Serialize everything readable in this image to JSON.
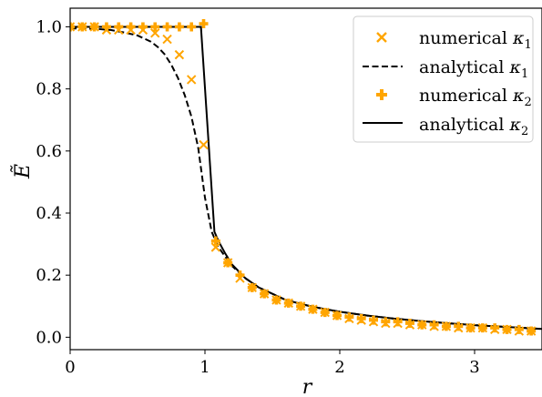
{
  "chart_data": {
    "type": "scatter",
    "xlabel": "r",
    "ylabel": "Ẽ",
    "xlim": [
      0,
      3.5
    ],
    "ylim": [
      -0.04,
      1.06
    ],
    "xticks": [
      0,
      1,
      2,
      3
    ],
    "xtick_labels": [
      "0",
      "1",
      "2",
      "3"
    ],
    "yticks": [
      0.0,
      0.2,
      0.4,
      0.6,
      0.8,
      1.0
    ],
    "ytick_labels": [
      "0.0",
      "0.2",
      "0.4",
      "0.6",
      "0.8",
      "1.0"
    ],
    "grid": false,
    "legend_position": "top-right",
    "colors": {
      "numerical": "#ffa500",
      "analytical": "#000000"
    },
    "series": [
      {
        "name": "numerical κ1",
        "marker": "x",
        "style": "marker",
        "x": [
          0.0,
          0.09,
          0.18,
          0.27,
          0.36,
          0.45,
          0.54,
          0.63,
          0.72,
          0.81,
          0.9,
          0.99,
          1.08,
          1.17,
          1.26,
          1.35,
          1.44,
          1.53,
          1.62,
          1.71,
          1.8,
          1.89,
          1.98,
          2.07,
          2.16,
          2.25,
          2.34,
          2.43,
          2.52,
          2.61,
          2.7,
          2.79,
          2.88,
          2.97,
          3.06,
          3.15,
          3.24,
          3.33,
          3.42
        ],
        "y": [
          1.0,
          1.0,
          1.0,
          0.99,
          0.99,
          0.99,
          0.99,
          0.98,
          0.96,
          0.91,
          0.83,
          0.62,
          0.29,
          0.24,
          0.19,
          0.16,
          0.14,
          0.12,
          0.11,
          0.1,
          0.09,
          0.08,
          0.07,
          0.06,
          0.055,
          0.05,
          0.045,
          0.045,
          0.04,
          0.04,
          0.035,
          0.035,
          0.03,
          0.03,
          0.03,
          0.025,
          0.025,
          0.02,
          0.02
        ]
      },
      {
        "name": "analytical κ1",
        "style": "dashed",
        "x": [
          0.0,
          0.1,
          0.2,
          0.3,
          0.4,
          0.5,
          0.55,
          0.6,
          0.65,
          0.7,
          0.75,
          0.8,
          0.85,
          0.9,
          0.95,
          1.0,
          1.05,
          1.1,
          1.2,
          1.3,
          1.4,
          1.5,
          1.6,
          1.8,
          2.0,
          2.2,
          2.4,
          2.6,
          2.8,
          3.0,
          3.2,
          3.5
        ],
        "y": [
          0.995,
          0.995,
          0.993,
          0.99,
          0.982,
          0.972,
          0.962,
          0.952,
          0.935,
          0.912,
          0.878,
          0.835,
          0.78,
          0.71,
          0.61,
          0.45,
          0.34,
          0.29,
          0.23,
          0.19,
          0.16,
          0.14,
          0.12,
          0.098,
          0.082,
          0.07,
          0.06,
          0.052,
          0.045,
          0.039,
          0.034,
          0.027
        ]
      },
      {
        "name": "numerical κ2",
        "marker": "plus",
        "style": "marker",
        "x": [
          0.0,
          0.09,
          0.18,
          0.27,
          0.36,
          0.45,
          0.54,
          0.63,
          0.72,
          0.81,
          0.9,
          0.99,
          1.08,
          1.17,
          1.26,
          1.35,
          1.44,
          1.53,
          1.62,
          1.71,
          1.8,
          1.89,
          1.98,
          2.07,
          2.16,
          2.25,
          2.34,
          2.43,
          2.52,
          2.61,
          2.7,
          2.79,
          2.88,
          2.97,
          3.06,
          3.15,
          3.24,
          3.33,
          3.42
        ],
        "y": [
          1.0,
          1.0,
          1.0,
          1.0,
          1.0,
          1.0,
          1.0,
          1.0,
          1.0,
          1.0,
          1.0,
          1.01,
          0.31,
          0.24,
          0.2,
          0.16,
          0.14,
          0.12,
          0.11,
          0.1,
          0.09,
          0.08,
          0.07,
          0.065,
          0.06,
          0.055,
          0.05,
          0.05,
          0.045,
          0.04,
          0.04,
          0.035,
          0.035,
          0.03,
          0.03,
          0.03,
          0.025,
          0.025,
          0.02
        ]
      },
      {
        "name": "analytical κ2",
        "style": "solid",
        "x": [
          0.0,
          0.97,
          1.07,
          1.1,
          1.15,
          1.2,
          1.3,
          1.4,
          1.5,
          1.6,
          1.8,
          2.0,
          2.2,
          2.4,
          2.6,
          2.8,
          3.0,
          3.2,
          3.5
        ],
        "y": [
          1.0,
          1.0,
          0.34,
          0.31,
          0.27,
          0.235,
          0.19,
          0.16,
          0.14,
          0.12,
          0.098,
          0.082,
          0.07,
          0.06,
          0.052,
          0.045,
          0.039,
          0.034,
          0.027
        ]
      }
    ]
  },
  "legend": {
    "items": [
      {
        "prefix": "numerical ",
        "symbol": "κ",
        "sub": "1"
      },
      {
        "prefix": "analytical ",
        "symbol": "κ",
        "sub": "1"
      },
      {
        "prefix": "numerical ",
        "symbol": "κ",
        "sub": "2"
      },
      {
        "prefix": "analytical ",
        "symbol": "κ",
        "sub": "2"
      }
    ]
  }
}
